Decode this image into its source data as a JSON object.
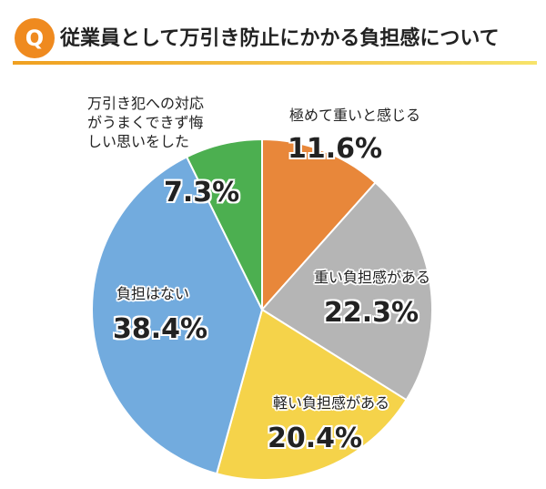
{
  "chart_data": {
    "type": "pie",
    "badge": "Q",
    "title": "従業員として万引き防止にかかる負担感について",
    "categories": [
      "極めて重いと感じる",
      "重い負担感がある",
      "軽い負担感がある",
      "負担はない",
      "万引き犯への対応\nがうまくできず悔\nしい思いをした"
    ],
    "values": [
      11.6,
      22.3,
      20.4,
      38.4,
      7.3
    ],
    "value_labels": [
      "11.6%",
      "22.3%",
      "20.4%",
      "38.4%",
      "7.3%"
    ],
    "colors": [
      "#e8873a",
      "#b5b5b5",
      "#f5d34a",
      "#72abde",
      "#4caf50"
    ]
  }
}
